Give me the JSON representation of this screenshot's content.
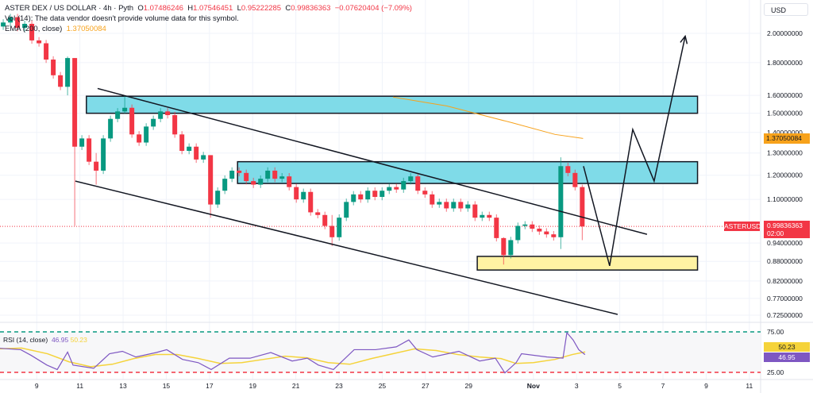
{
  "header": {
    "symbol_title": "ASTER DEX / US DOLLAR · 4h · Pyth",
    "open_label": "O",
    "open": "1.07486246",
    "high_label": "H",
    "high": "1.07546451",
    "low_label": "L",
    "low": "0.95222285",
    "close_label": "C",
    "close": "0.99836363",
    "change": "−0.07620404 (−7.09%)",
    "volume_note": "Vol (14): The data vendor doesn't provide volume data for this symbol.",
    "ema_label": "EMA (200, close)",
    "ema_value": "1.37050084"
  },
  "currency_button": "USD",
  "price_tags": {
    "ema": "1.37050084",
    "symbol": "ASTERUSD",
    "last_price": "0.99836363",
    "countdown": "02:00"
  },
  "rsi": {
    "label": "RSI (14, close)",
    "value": "46.95",
    "ma_value": "50.23",
    "upper_label": "75.00",
    "lower_label": "25.00"
  },
  "colors": {
    "up": "#089981",
    "down": "#f23645",
    "ema": "#f7a21b",
    "rsi": "#7e57c2",
    "rsi_ma": "#f5d33a",
    "zone_blue": "#7fdbe8",
    "zone_yellow": "#fff3a3"
  },
  "chart_data": {
    "type": "candlestick",
    "title": "ASTER DEX / US DOLLAR · 4h · Pyth",
    "y_scale": "log",
    "ylim": [
      0.72,
      2.15
    ],
    "x_unit": "day of October (Nov 1 = 32)",
    "y_ticks": [
      "2.00000000",
      "1.80000000",
      "1.60000000",
      "1.50000000",
      "1.40000000",
      "1.30000000",
      "1.20000000",
      "1.10000000",
      "0.94000000",
      "0.88000000",
      "0.82000000",
      "0.77000000",
      "0.72500000"
    ],
    "x_ticks": [
      {
        "label": "9",
        "day": 9
      },
      {
        "label": "11",
        "day": 11
      },
      {
        "label": "13",
        "day": 13
      },
      {
        "label": "15",
        "day": 15
      },
      {
        "label": "17",
        "day": 17
      },
      {
        "label": "19",
        "day": 19
      },
      {
        "label": "21",
        "day": 21
      },
      {
        "label": "23",
        "day": 23
      },
      {
        "label": "25",
        "day": 25
      },
      {
        "label": "27",
        "day": 27
      },
      {
        "label": "29",
        "day": 29
      },
      {
        "label": "Nov",
        "day": 32
      },
      {
        "label": "3",
        "day": 34
      },
      {
        "label": "5",
        "day": 36
      },
      {
        "label": "7",
        "day": 38
      },
      {
        "label": "9",
        "day": 40
      },
      {
        "label": "11",
        "day": 42
      }
    ],
    "candles": {
      "start_day": 7.45,
      "interval_days": 0.331,
      "first_open": 2.05,
      "closes": [
        2.08,
        2.12,
        2.04,
        2.07,
        1.95,
        1.93,
        1.82,
        1.72,
        1.65,
        1.83,
        1.33,
        1.37,
        1.26,
        1.22,
        1.37,
        1.47,
        1.51,
        1.53,
        1.39,
        1.35,
        1.43,
        1.47,
        1.51,
        1.49,
        1.39,
        1.31,
        1.33,
        1.27,
        1.29,
        1.08,
        1.135,
        1.185,
        1.22,
        1.21,
        1.175,
        1.16,
        1.185,
        1.22,
        1.185,
        1.195,
        1.15,
        1.1,
        1.13,
        1.05,
        1.04,
        1.0,
        0.96,
        1.03,
        1.09,
        1.12,
        1.1,
        1.135,
        1.11,
        1.135,
        1.15,
        1.14,
        1.175,
        1.195,
        1.135,
        1.12,
        1.08,
        1.09,
        1.065,
        1.09,
        1.065,
        1.08,
        1.03,
        1.04,
        1.03,
        0.957,
        0.9,
        0.95,
        1.0,
        1.005,
        0.99,
        0.98,
        0.97,
        0.96,
        1.24,
        1.21,
        1.15,
        0.998
      ],
      "wick_overrides": {
        "9": [
          1.84,
          1.6
        ],
        "10": [
          1.83,
          1.0
        ],
        "13": [
          1.3,
          1.16
        ],
        "17": [
          1.6,
          1.5
        ],
        "29": [
          1.29,
          1.03
        ],
        "46": [
          1.04,
          0.93
        ],
        "70": [
          0.96,
          0.87
        ],
        "78": [
          1.28,
          0.92
        ],
        "81": [
          1.16,
          0.95
        ]
      }
    },
    "ema_200": [
      [
        25.5,
        1.59
      ],
      [
        28,
        1.54
      ],
      [
        31,
        1.45
      ],
      [
        33,
        1.39
      ],
      [
        34.3,
        1.37
      ]
    ],
    "last_price": 0.99836363,
    "zones": [
      {
        "name": "upper-resistance-zone",
        "from_day": 11.3,
        "to_day": 39.6,
        "top": 1.595,
        "bottom": 1.5,
        "color": "blue"
      },
      {
        "name": "middle-resistance-zone",
        "from_day": 18.3,
        "to_day": 39.6,
        "top": 1.26,
        "bottom": 1.165,
        "color": "blue"
      },
      {
        "name": "support-zone",
        "from_day": 29.4,
        "to_day": 39.6,
        "top": 0.896,
        "bottom": 0.853,
        "color": "yellow"
      }
    ],
    "trendlines": [
      {
        "name": "channel-upper-line",
        "points": [
          [
            11.82,
            1.64
          ],
          [
            37.26,
            0.97
          ]
        ]
      },
      {
        "name": "channel-lower-line",
        "points": [
          [
            10.79,
            1.175
          ],
          [
            35.9,
            0.727
          ]
        ]
      }
    ],
    "projection_path": [
      [
        34.32,
        1.24
      ],
      [
        35.53,
        0.866
      ],
      [
        36.6,
        1.415
      ],
      [
        37.59,
        1.175
      ],
      [
        39.03,
        1.98
      ]
    ],
    "rsi_series": [
      [
        7.3,
        54.7
      ],
      [
        8.26,
        53
      ],
      [
        8.74,
        46
      ],
      [
        9.47,
        34
      ],
      [
        9.95,
        28.5
      ],
      [
        10.43,
        50
      ],
      [
        10.68,
        34
      ],
      [
        11.64,
        30
      ],
      [
        12.37,
        48
      ],
      [
        12.97,
        51
      ],
      [
        13.59,
        44
      ],
      [
        14.54,
        49.5
      ],
      [
        15.02,
        53
      ],
      [
        15.75,
        41
      ],
      [
        16.48,
        37
      ],
      [
        17.08,
        28.5
      ],
      [
        17.92,
        42.5
      ],
      [
        18.88,
        42.5
      ],
      [
        19.84,
        49.5
      ],
      [
        20.83,
        39
      ],
      [
        21.53,
        42.5
      ],
      [
        22.04,
        34
      ],
      [
        22.74,
        28.5
      ],
      [
        23.7,
        53
      ],
      [
        24.69,
        53
      ],
      [
        25.65,
        56.5
      ],
      [
        26.23,
        65
      ],
      [
        26.6,
        53
      ],
      [
        27.34,
        44
      ],
      [
        28.55,
        51
      ],
      [
        29.51,
        39
      ],
      [
        30.24,
        42.5
      ],
      [
        30.68,
        24.3
      ],
      [
        31.2,
        37
      ],
      [
        31.45,
        48
      ],
      [
        32.63,
        44
      ],
      [
        33.37,
        42.5
      ],
      [
        33.55,
        74
      ],
      [
        33.84,
        65
      ],
      [
        34.1,
        53
      ],
      [
        34.39,
        46.95
      ]
    ],
    "rsi_ma_series": [
      [
        7.3,
        54
      ],
      [
        8.3,
        55
      ],
      [
        9.5,
        48
      ],
      [
        10.5,
        38
      ],
      [
        11.5,
        32
      ],
      [
        12.5,
        35
      ],
      [
        13.5,
        42
      ],
      [
        14.5,
        47
      ],
      [
        15.5,
        47
      ],
      [
        16.5,
        42
      ],
      [
        17.5,
        36
      ],
      [
        18.5,
        37
      ],
      [
        19.5,
        41
      ],
      [
        20.5,
        45
      ],
      [
        21.5,
        43
      ],
      [
        22.5,
        37
      ],
      [
        23.5,
        35
      ],
      [
        24.5,
        42
      ],
      [
        25.5,
        48
      ],
      [
        26.5,
        54
      ],
      [
        27.5,
        52
      ],
      [
        28.5,
        47
      ],
      [
        29.5,
        44
      ],
      [
        30.5,
        42
      ],
      [
        31.2,
        36
      ],
      [
        32,
        37
      ],
      [
        33,
        41
      ],
      [
        33.8,
        47
      ],
      [
        34.4,
        50.23
      ]
    ],
    "rsi_levels": [
      75,
      25
    ]
  }
}
